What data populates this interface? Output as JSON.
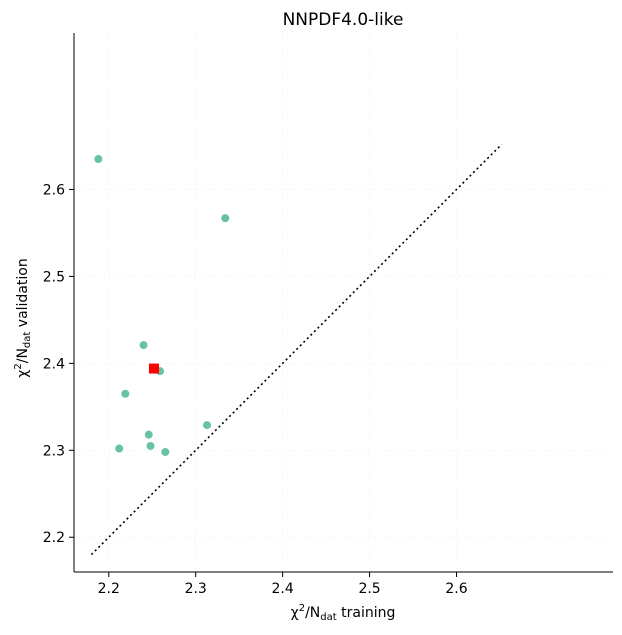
{
  "chart_data": {
    "type": "scatter",
    "title": "NNPDF4.0-like",
    "xlabel": {
      "prefix": "χ",
      "sup": "2",
      "mid": "/N",
      "sub": "dat",
      "suffix": " training"
    },
    "ylabel": {
      "prefix": "χ",
      "sup": "2",
      "mid": "/N",
      "sub": "dat",
      "suffix": " validation"
    },
    "xlim": [
      2.16,
      2.78
    ],
    "ylim": [
      2.16,
      2.78
    ],
    "xticks": [
      "2.2",
      "2.3",
      "2.4",
      "2.5",
      "2.6"
    ],
    "yticks": [
      "2.2",
      "2.3",
      "2.4",
      "2.5",
      "2.6"
    ],
    "grid": true,
    "reference_line": {
      "style": "dotted",
      "color": "#000000",
      "from": [
        2.18,
        2.18
      ],
      "to": [
        2.652,
        2.652
      ]
    },
    "series": [
      {
        "marker": "circle",
        "color": "#66c2a5",
        "x": [
          2.188,
          2.334,
          2.24,
          2.259,
          2.219,
          2.313,
          2.246,
          2.212,
          2.248,
          2.265
        ],
        "y": [
          2.635,
          2.567,
          2.421,
          2.391,
          2.365,
          2.329,
          2.318,
          2.302,
          2.305,
          2.298
        ]
      },
      {
        "marker": "square",
        "color": "#ff0000",
        "x": [
          2.252
        ],
        "y": [
          2.394
        ]
      }
    ]
  }
}
